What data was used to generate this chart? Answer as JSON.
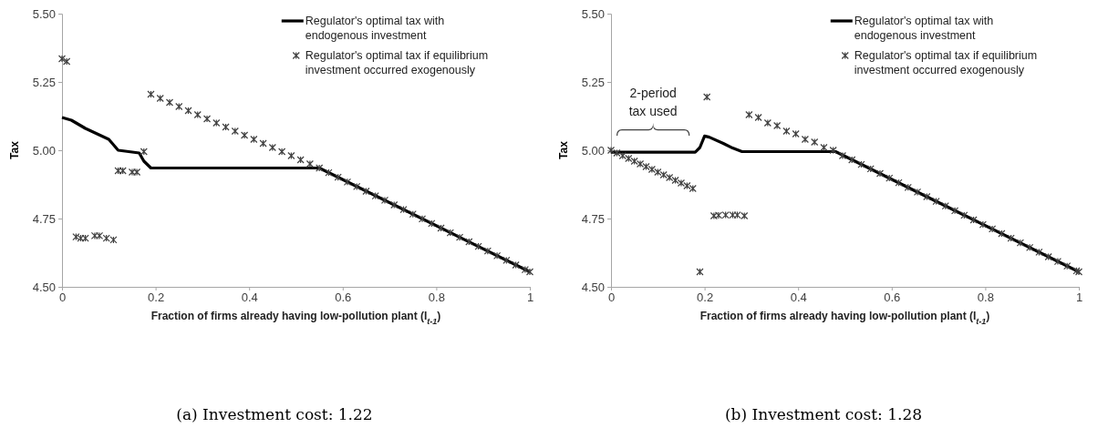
{
  "chart_data": [
    {
      "type": "line",
      "title": "(a) Investment cost: 1.22",
      "xlabel": "Fraction of firms already having low-pollution plant (I$_{t-1}$)",
      "ylabel": "Tax",
      "xlim": [
        0,
        1
      ],
      "xticks": [
        0,
        0.2,
        0.4,
        0.6,
        0.8,
        1
      ],
      "ylim": [
        4.5,
        5.5
      ],
      "yticks": [
        {
          "value": 4.5,
          "label": "4.50"
        },
        {
          "value": 4.75,
          "label": "4.75"
        },
        {
          "value": 5,
          "label": "5.00"
        },
        {
          "value": 5.25,
          "label": "5.25"
        },
        {
          "value": 5.5,
          "label": "5.50"
        }
      ],
      "grid": false,
      "legend": "top right",
      "series": [
        {
          "name": "Regulator's optimal tax with endogenous investment",
          "type": "line",
          "color": "#000000",
          "x": [
            0,
            0.02,
            0.05,
            0.1,
            0.11,
            0.12,
            0.165,
            0.175,
            0.19,
            0.55,
            1
          ],
          "values": [
            5.12,
            5.11,
            5.08,
            5.04,
            5.02,
            5.0,
            4.99,
            4.96,
            4.935,
            4.935,
            4.555
          ]
        },
        {
          "name": "Regulator's optimal tax if equilibrium investment occurred exogenously",
          "type": "scatter",
          "marker": "cross",
          "color": "#404040",
          "x": [
            0,
            0.01,
            0.03,
            0.04,
            0.05,
            0.07,
            0.08,
            0.095,
            0.11,
            0.12,
            0.13,
            0.15,
            0.16,
            0.175,
            0.19,
            0.21,
            0.23,
            0.25,
            0.27,
            0.29,
            0.31,
            0.33,
            0.35,
            0.37,
            0.39,
            0.41,
            0.43,
            0.45,
            0.47,
            0.49,
            0.51,
            0.53,
            0.55,
            0.57,
            0.59,
            0.61,
            0.63,
            0.65,
            0.67,
            0.69,
            0.71,
            0.73,
            0.75,
            0.77,
            0.79,
            0.81,
            0.83,
            0.85,
            0.87,
            0.89,
            0.91,
            0.93,
            0.95,
            0.97,
            0.99,
            1
          ],
          "values": [
            5.335,
            5.325,
            4.683,
            4.678,
            4.678,
            4.687,
            4.687,
            4.678,
            4.672,
            4.925,
            4.925,
            4.92,
            4.92,
            4.995,
            5.205,
            5.19,
            5.175,
            5.16,
            5.145,
            5.13,
            5.115,
            5.1,
            5.085,
            5.07,
            5.055,
            5.04,
            5.025,
            5.01,
            4.995,
            4.98,
            4.965,
            4.95,
            4.935,
            4.918,
            4.901,
            4.884,
            4.867,
            4.85,
            4.833,
            4.817,
            4.8,
            4.783,
            4.766,
            4.749,
            4.732,
            4.715,
            4.698,
            4.681,
            4.665,
            4.648,
            4.631,
            4.614,
            4.597,
            4.58,
            4.563,
            4.555
          ]
        }
      ]
    },
    {
      "type": "line",
      "title": "(b) Investment cost: 1.28",
      "xlabel": "Fraction of firms already having low-pollution plant (I$_{t-1}$)",
      "ylabel": "Tax",
      "xlim": [
        0,
        1
      ],
      "xticks": [
        0,
        0.2,
        0.4,
        0.6,
        0.8,
        1
      ],
      "ylim": [
        4.5,
        5.5
      ],
      "yticks": [
        {
          "value": 4.5,
          "label": "4.50"
        },
        {
          "value": 4.75,
          "label": "4.75"
        },
        {
          "value": 5,
          "label": "5.00"
        },
        {
          "value": 5.25,
          "label": "5.25"
        },
        {
          "value": 5.5,
          "label": "5.50"
        }
      ],
      "grid": false,
      "legend": "top right",
      "annotations": [
        {
          "text": "2-period tax used",
          "x": 0.09,
          "y": 4.993
        }
      ],
      "series": [
        {
          "name": "Regulator's optimal tax with endogenous investment",
          "color": "#000000",
          "x": [
            0,
            0.18,
            0.19,
            0.2,
            0.21,
            0.24,
            0.26,
            0.28,
            0.48,
            1
          ],
          "values": [
            4.993,
            4.993,
            5.01,
            5.052,
            5.048,
            5.025,
            5.008,
            4.995,
            4.995,
            4.555
          ]
        },
        {
          "name": "Regulator's optimal tax if equilibrium investment occurred exogenously",
          "type": "scatter",
          "marker": "cross",
          "color": "#404040",
          "x": [
            0,
            0.0125,
            0.025,
            0.0375,
            0.05,
            0.0625,
            0.075,
            0.0875,
            0.1,
            0.1125,
            0.125,
            0.1375,
            0.15,
            0.1625,
            0.175,
            0.19,
            0.205,
            0.22,
            0.23,
            0.245,
            0.26,
            0.27,
            0.285,
            0.295,
            0.315,
            0.335,
            0.355,
            0.375,
            0.395,
            0.415,
            0.435,
            0.455,
            0.475,
            0.495,
            0.515,
            0.535,
            0.555,
            0.575,
            0.595,
            0.615,
            0.635,
            0.655,
            0.675,
            0.695,
            0.715,
            0.735,
            0.755,
            0.775,
            0.795,
            0.815,
            0.835,
            0.855,
            0.875,
            0.895,
            0.915,
            0.935,
            0.955,
            0.975,
            0.995,
            1
          ],
          "values": [
            5.0,
            4.99,
            4.98,
            4.97,
            4.96,
            4.95,
            4.94,
            4.93,
            4.92,
            4.91,
            4.9,
            4.89,
            4.88,
            4.87,
            4.86,
            4.555,
            5.195,
            4.76,
            4.762,
            4.763,
            4.763,
            4.763,
            4.76,
            5.13,
            5.12,
            5.1,
            5.09,
            5.07,
            5.06,
            5.04,
            5.03,
            5.01,
            5.0,
            4.98,
            4.965,
            4.948,
            4.932,
            4.915,
            4.898,
            4.881,
            4.864,
            4.847,
            4.83,
            4.813,
            4.796,
            4.779,
            4.762,
            4.745,
            4.728,
            4.712,
            4.695,
            4.678,
            4.661,
            4.644,
            4.627,
            4.61,
            4.593,
            4.576,
            4.559,
            4.555
          ]
        }
      ]
    }
  ]
}
